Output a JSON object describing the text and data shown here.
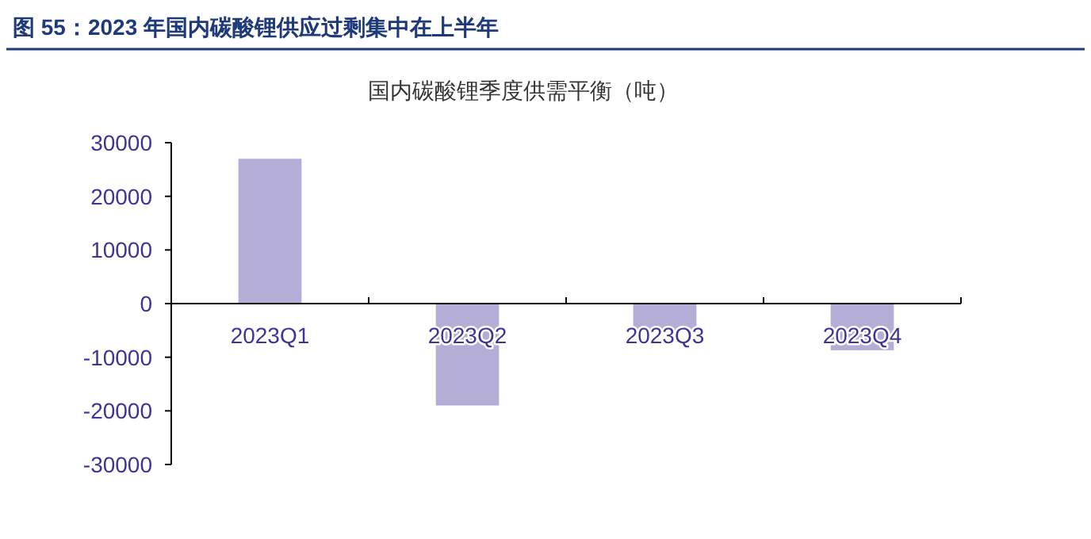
{
  "chart_data": {
    "type": "bar",
    "title": "图 55：2023 年国内碳酸锂供应过剩集中在上半年",
    "subtitle": "国内碳酸锂季度供需平衡（吨）",
    "categories": [
      "2023Q1",
      "2023Q2",
      "2023Q3",
      "2023Q4"
    ],
    "values": [
      27000,
      -19000,
      -5000,
      -8700
    ],
    "color": "#b4aed6",
    "ylim": [
      -30000,
      30000
    ],
    "yticks": [
      -30000,
      -20000,
      -10000,
      0,
      10000,
      20000,
      30000
    ],
    "grid": false
  }
}
